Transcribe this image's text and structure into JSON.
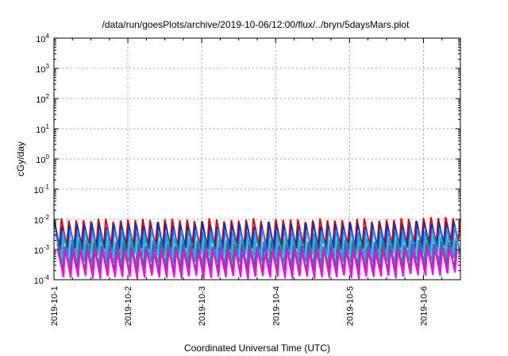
{
  "chart_data": {
    "type": "line",
    "title": "/data/run/goesPlots/archive/2019-10-06/12:00/flux/../bryn/5daysMars.plot",
    "xlabel": "Coordinated Universal Time (UTC)",
    "ylabel": "cGy/day",
    "yscale": "log",
    "ylim": [
      0.0001,
      10000
    ],
    "xlim": [
      "2019-10-01",
      "2019-10-06 12:00"
    ],
    "grid": true,
    "x_ticks": [
      "2019-10-1",
      "2019-10-2",
      "2019-10-3",
      "2019-10-4",
      "2019-10-5",
      "2019-10-6"
    ],
    "y_ticks": [
      {
        "base": "10",
        "exp": "-4",
        "value": 0.0001
      },
      {
        "base": "10",
        "exp": "-3",
        "value": 0.001
      },
      {
        "base": "10",
        "exp": "-2",
        "value": 0.01
      },
      {
        "base": "10",
        "exp": "-1",
        "value": 0.1
      },
      {
        "base": "10",
        "exp": "0",
        "value": 1
      },
      {
        "base": "10",
        "exp": "1",
        "value": 10
      },
      {
        "base": "10",
        "exp": "2",
        "value": 100
      },
      {
        "base": "10",
        "exp": "3",
        "value": 1000
      },
      {
        "base": "10",
        "exp": "4",
        "value": 10000
      }
    ],
    "orbit_period_days": 0.1,
    "series": [
      {
        "color": "#e00000",
        "peak": [
          0.008,
          0.011
        ],
        "trough": [
          0.0012,
          0.0016
        ],
        "phase": 0.0
      },
      {
        "color": "#1030c0",
        "peak": [
          0.0055,
          0.0085
        ],
        "trough": [
          0.0008,
          0.0011
        ],
        "phase": 0.01
      },
      {
        "color": "#1e90ff",
        "peak": [
          0.0035,
          0.005
        ],
        "trough": [
          0.0005,
          0.0007
        ],
        "phase": 0.02
      },
      {
        "color": "#10b0a0",
        "peak": [
          0.0018,
          0.0028
        ],
        "trough": [
          0.0003,
          0.0004
        ],
        "phase": 0.035
      },
      {
        "color": "#606060",
        "peak": [
          0.0012,
          0.0018
        ],
        "trough": [
          0.00018,
          0.00024
        ],
        "phase": 0.045
      },
      {
        "color": "#9932cc",
        "peak": [
          0.0009,
          0.0014
        ],
        "trough": [
          0.00013,
          0.00018
        ],
        "phase": 0.05
      },
      {
        "color": "#ff00ff",
        "peak": [
          0.0007,
          0.0011
        ],
        "trough": [
          0.0001,
          0.00014
        ],
        "phase": 0.055
      }
    ]
  }
}
